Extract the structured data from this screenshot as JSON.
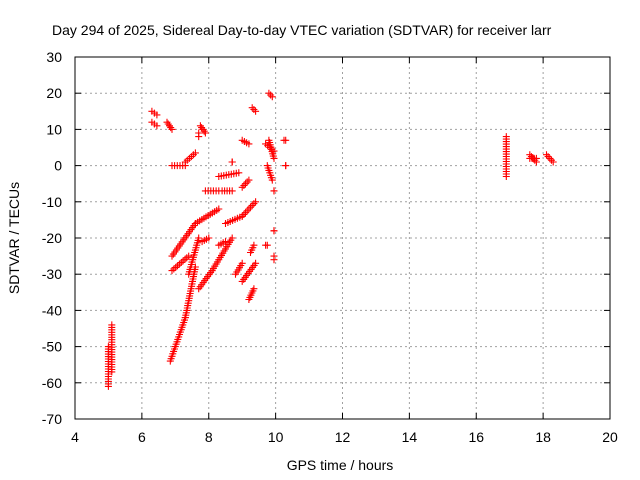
{
  "chart_data": {
    "type": "scatter",
    "title": "Day 294 of 2025, Sidereal Day-to-day VTEC variation (SDTVAR) for receiver larr",
    "xlabel": "GPS time / hours",
    "ylabel": "SDTVAR / TECUs",
    "xlim": [
      4,
      20
    ],
    "ylim": [
      -70,
      30
    ],
    "xticks": [
      4,
      6,
      8,
      10,
      12,
      14,
      16,
      18,
      20
    ],
    "yticks": [
      -70,
      -60,
      -50,
      -40,
      -30,
      -20,
      -10,
      0,
      10,
      20,
      30
    ],
    "grid": true,
    "marker": "plus",
    "color": "#ff0000",
    "segments": [
      {
        "x0": 5.0,
        "x1": 5.0,
        "y0": -61,
        "y1": -50
      },
      {
        "x0": 5.1,
        "x1": 5.1,
        "y0": -57,
        "y1": -44
      },
      {
        "x0": 6.3,
        "x1": 6.45,
        "y0": 15,
        "y1": 14
      },
      {
        "x0": 6.3,
        "x1": 6.45,
        "y0": 12,
        "y1": 11
      },
      {
        "x0": 6.75,
        "x1": 6.9,
        "y0": 12,
        "y1": 10
      },
      {
        "x0": 6.9,
        "x1": 7.3,
        "y0": 0,
        "y1": 0
      },
      {
        "x0": 7.3,
        "x1": 7.6,
        "y0": 1,
        "y1": 3.5
      },
      {
        "x0": 7.75,
        "x1": 7.9,
        "y0": 11,
        "y1": 9
      },
      {
        "x0": 7.7,
        "x1": 7.7,
        "y0": 9,
        "y1": 8
      },
      {
        "x0": 7.9,
        "x1": 8.3,
        "y0": -7,
        "y1": -7
      },
      {
        "x0": 8.3,
        "x1": 8.9,
        "y0": -3,
        "y1": -2
      },
      {
        "x0": 8.4,
        "x1": 8.7,
        "y0": -7,
        "y1": -7
      },
      {
        "x0": 8.7,
        "x1": 8.7,
        "y0": 1,
        "y1": 1
      },
      {
        "x0": 9.0,
        "x1": 9.2,
        "y0": 7,
        "y1": 6
      },
      {
        "x0": 9.3,
        "x1": 9.4,
        "y0": 16,
        "y1": 15
      },
      {
        "x0": 9.0,
        "x1": 9.2,
        "y0": -6,
        "y1": -4
      },
      {
        "x0": 9.8,
        "x1": 9.9,
        "y0": 20,
        "y1": 19
      },
      {
        "x0": 9.8,
        "x1": 9.95,
        "y0": 7,
        "y1": 2
      },
      {
        "x0": 9.75,
        "x1": 9.9,
        "y0": 0,
        "y1": -4
      },
      {
        "x0": 9.7,
        "x1": 9.95,
        "y0": 6,
        "y1": 4
      },
      {
        "x0": 9.95,
        "x1": 9.95,
        "y0": -7,
        "y1": -7
      },
      {
        "x0": 9.95,
        "x1": 9.95,
        "y0": -18,
        "y1": -18
      },
      {
        "x0": 9.95,
        "x1": 9.95,
        "y0": -25,
        "y1": -26
      },
      {
        "x0": 10.25,
        "x1": 10.3,
        "y0": 7,
        "y1": 7
      },
      {
        "x0": 10.3,
        "x1": 10.3,
        "y0": 0,
        "y1": 0
      },
      {
        "x0": 6.9,
        "x1": 7.6,
        "y0": -25,
        "y1": -16
      },
      {
        "x0": 7.6,
        "x1": 8.3,
        "y0": -16,
        "y1": -12
      },
      {
        "x0": 6.85,
        "x1": 7.3,
        "y0": -54,
        "y1": -42
      },
      {
        "x0": 7.3,
        "x1": 7.6,
        "y0": -42,
        "y1": -28
      },
      {
        "x0": 6.9,
        "x1": 7.4,
        "y0": -29,
        "y1": -25
      },
      {
        "x0": 7.4,
        "x1": 7.7,
        "y0": -30,
        "y1": -20
      },
      {
        "x0": 7.8,
        "x1": 8.0,
        "y0": -21,
        "y1": -20
      },
      {
        "x0": 7.7,
        "x1": 8.1,
        "y0": -34,
        "y1": -29
      },
      {
        "x0": 8.1,
        "x1": 8.7,
        "y0": -29,
        "y1": -20
      },
      {
        "x0": 8.3,
        "x1": 8.5,
        "y0": -22,
        "y1": -21
      },
      {
        "x0": 8.5,
        "x1": 9.0,
        "y0": -16,
        "y1": -14
      },
      {
        "x0": 9.0,
        "x1": 9.4,
        "y0": -14,
        "y1": -10
      },
      {
        "x0": 8.8,
        "x1": 9.0,
        "y0": -30,
        "y1": -27
      },
      {
        "x0": 9.0,
        "x1": 9.4,
        "y0": -32,
        "y1": -27
      },
      {
        "x0": 9.25,
        "x1": 9.35,
        "y0": -24,
        "y1": -22
      },
      {
        "x0": 9.2,
        "x1": 9.35,
        "y0": -37,
        "y1": -34
      },
      {
        "x0": 9.7,
        "x1": 9.75,
        "y0": -22,
        "y1": -22
      },
      {
        "x0": 16.9,
        "x1": 16.9,
        "y0": -3,
        "y1": 8
      },
      {
        "x0": 17.6,
        "x1": 17.8,
        "y0": 3,
        "y1": 1
      },
      {
        "x0": 17.6,
        "x1": 17.8,
        "y0": 2,
        "y1": 2
      },
      {
        "x0": 18.1,
        "x1": 18.3,
        "y0": 3,
        "y1": 1
      }
    ]
  }
}
